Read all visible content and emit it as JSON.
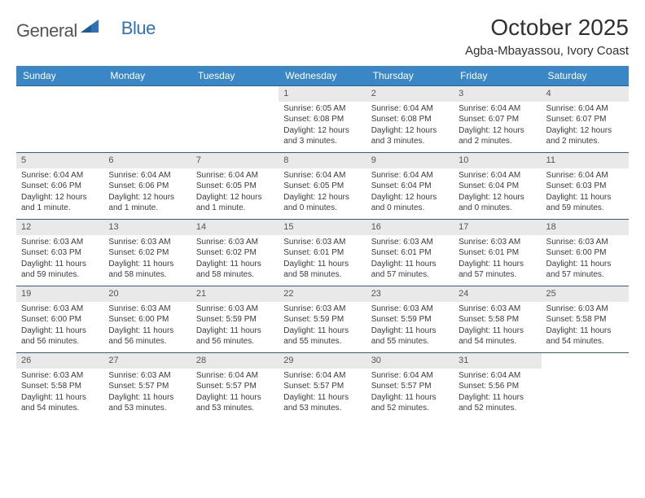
{
  "logo": {
    "general": "General",
    "blue": "Blue",
    "triangle_color": "#2f72b9"
  },
  "title": "October 2025",
  "location": "Agba-Mbayassou, Ivory Coast",
  "colors": {
    "header_bg": "#3a87c8",
    "header_text": "#ffffff",
    "daynum_bg": "#e9e9e9",
    "border": "#2f5f8a",
    "body_text": "#3b3b3b"
  },
  "weekdays": [
    "Sunday",
    "Monday",
    "Tuesday",
    "Wednesday",
    "Thursday",
    "Friday",
    "Saturday"
  ],
  "weeks": [
    [
      {
        "n": "",
        "sr": "",
        "ss": "",
        "dl": ""
      },
      {
        "n": "",
        "sr": "",
        "ss": "",
        "dl": ""
      },
      {
        "n": "",
        "sr": "",
        "ss": "",
        "dl": ""
      },
      {
        "n": "1",
        "sr": "6:05 AM",
        "ss": "6:08 PM",
        "dl": "12 hours and 3 minutes."
      },
      {
        "n": "2",
        "sr": "6:04 AM",
        "ss": "6:08 PM",
        "dl": "12 hours and 3 minutes."
      },
      {
        "n": "3",
        "sr": "6:04 AM",
        "ss": "6:07 PM",
        "dl": "12 hours and 2 minutes."
      },
      {
        "n": "4",
        "sr": "6:04 AM",
        "ss": "6:07 PM",
        "dl": "12 hours and 2 minutes."
      }
    ],
    [
      {
        "n": "5",
        "sr": "6:04 AM",
        "ss": "6:06 PM",
        "dl": "12 hours and 1 minute."
      },
      {
        "n": "6",
        "sr": "6:04 AM",
        "ss": "6:06 PM",
        "dl": "12 hours and 1 minute."
      },
      {
        "n": "7",
        "sr": "6:04 AM",
        "ss": "6:05 PM",
        "dl": "12 hours and 1 minute."
      },
      {
        "n": "8",
        "sr": "6:04 AM",
        "ss": "6:05 PM",
        "dl": "12 hours and 0 minutes."
      },
      {
        "n": "9",
        "sr": "6:04 AM",
        "ss": "6:04 PM",
        "dl": "12 hours and 0 minutes."
      },
      {
        "n": "10",
        "sr": "6:04 AM",
        "ss": "6:04 PM",
        "dl": "12 hours and 0 minutes."
      },
      {
        "n": "11",
        "sr": "6:04 AM",
        "ss": "6:03 PM",
        "dl": "11 hours and 59 minutes."
      }
    ],
    [
      {
        "n": "12",
        "sr": "6:03 AM",
        "ss": "6:03 PM",
        "dl": "11 hours and 59 minutes."
      },
      {
        "n": "13",
        "sr": "6:03 AM",
        "ss": "6:02 PM",
        "dl": "11 hours and 58 minutes."
      },
      {
        "n": "14",
        "sr": "6:03 AM",
        "ss": "6:02 PM",
        "dl": "11 hours and 58 minutes."
      },
      {
        "n": "15",
        "sr": "6:03 AM",
        "ss": "6:01 PM",
        "dl": "11 hours and 58 minutes."
      },
      {
        "n": "16",
        "sr": "6:03 AM",
        "ss": "6:01 PM",
        "dl": "11 hours and 57 minutes."
      },
      {
        "n": "17",
        "sr": "6:03 AM",
        "ss": "6:01 PM",
        "dl": "11 hours and 57 minutes."
      },
      {
        "n": "18",
        "sr": "6:03 AM",
        "ss": "6:00 PM",
        "dl": "11 hours and 57 minutes."
      }
    ],
    [
      {
        "n": "19",
        "sr": "6:03 AM",
        "ss": "6:00 PM",
        "dl": "11 hours and 56 minutes."
      },
      {
        "n": "20",
        "sr": "6:03 AM",
        "ss": "6:00 PM",
        "dl": "11 hours and 56 minutes."
      },
      {
        "n": "21",
        "sr": "6:03 AM",
        "ss": "5:59 PM",
        "dl": "11 hours and 56 minutes."
      },
      {
        "n": "22",
        "sr": "6:03 AM",
        "ss": "5:59 PM",
        "dl": "11 hours and 55 minutes."
      },
      {
        "n": "23",
        "sr": "6:03 AM",
        "ss": "5:59 PM",
        "dl": "11 hours and 55 minutes."
      },
      {
        "n": "24",
        "sr": "6:03 AM",
        "ss": "5:58 PM",
        "dl": "11 hours and 54 minutes."
      },
      {
        "n": "25",
        "sr": "6:03 AM",
        "ss": "5:58 PM",
        "dl": "11 hours and 54 minutes."
      }
    ],
    [
      {
        "n": "26",
        "sr": "6:03 AM",
        "ss": "5:58 PM",
        "dl": "11 hours and 54 minutes."
      },
      {
        "n": "27",
        "sr": "6:03 AM",
        "ss": "5:57 PM",
        "dl": "11 hours and 53 minutes."
      },
      {
        "n": "28",
        "sr": "6:04 AM",
        "ss": "5:57 PM",
        "dl": "11 hours and 53 minutes."
      },
      {
        "n": "29",
        "sr": "6:04 AM",
        "ss": "5:57 PM",
        "dl": "11 hours and 53 minutes."
      },
      {
        "n": "30",
        "sr": "6:04 AM",
        "ss": "5:57 PM",
        "dl": "11 hours and 52 minutes."
      },
      {
        "n": "31",
        "sr": "6:04 AM",
        "ss": "5:56 PM",
        "dl": "11 hours and 52 minutes."
      },
      {
        "n": "",
        "sr": "",
        "ss": "",
        "dl": ""
      }
    ]
  ],
  "labels": {
    "sunrise": "Sunrise: ",
    "sunset": "Sunset: ",
    "daylight": "Daylight: "
  }
}
